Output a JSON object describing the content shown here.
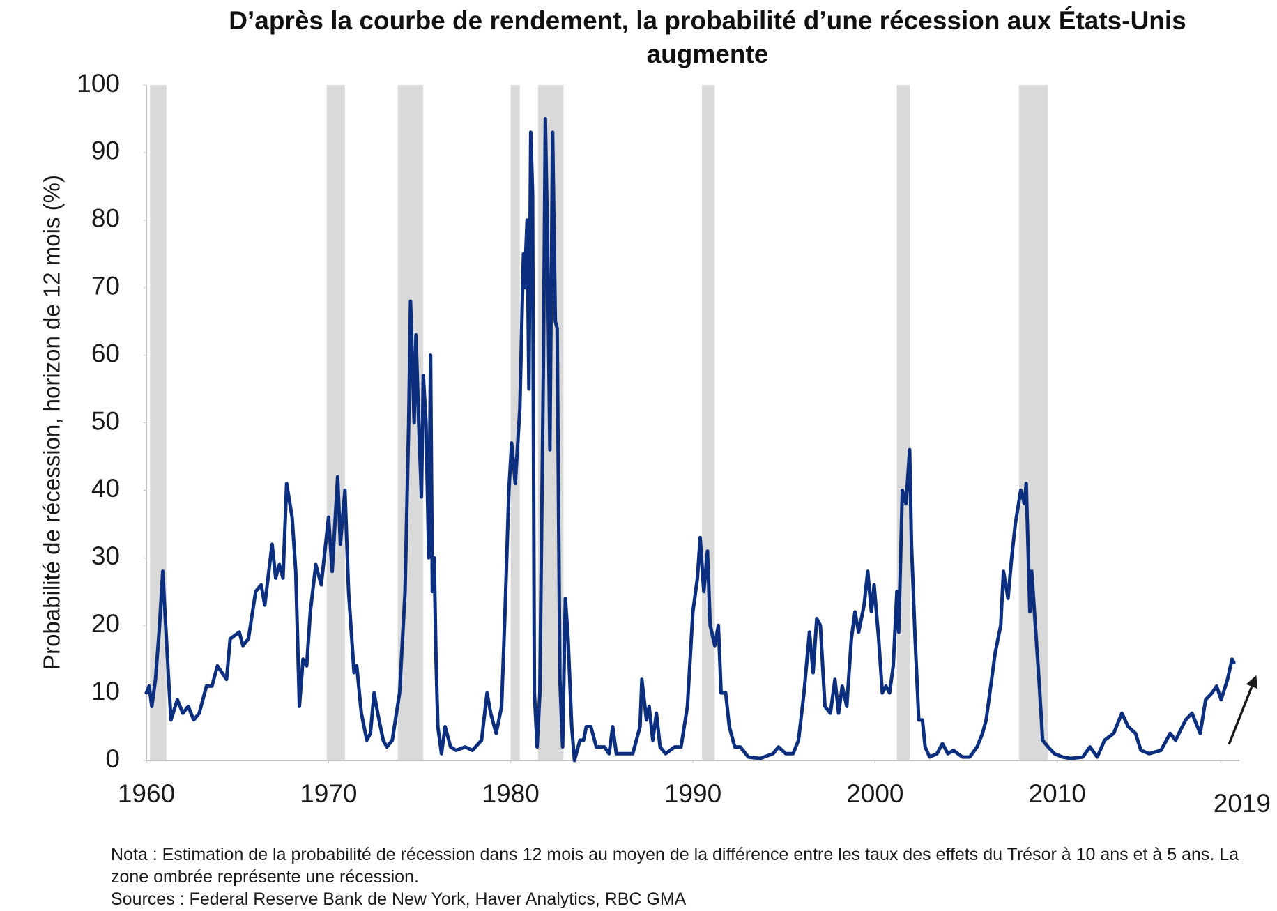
{
  "chart_data": {
    "type": "line",
    "title": "D’après la courbe de rendement, la probabilité d’une récession aux États-Unis augmente",
    "y_label": "Probabilité de récession, horizon de 12 mois (%)",
    "note": "Nota : Estimation de la probabilité de récession dans 12 mois au moyen de la différence entre les taux des effets du Trésor à 10 ans et à 5 ans. La zone ombrée représente une récession.",
    "sources": "Sources : Federal Reserve Bank de New York, Haver Analytics, RBC GMA",
    "color": "#0b2f7e",
    "shade_color": "#d9d9d9",
    "xlim": [
      1960,
      2020
    ],
    "xticks": [
      1960,
      1970,
      1980,
      1990,
      2000,
      2010,
      2019
    ],
    "ylim": [
      0,
      100
    ],
    "yticks": [
      0,
      10,
      20,
      30,
      40,
      50,
      60,
      70,
      80,
      90,
      100
    ],
    "recessions": [
      [
        1960.2,
        1961.1
      ],
      [
        1969.9,
        1970.9
      ],
      [
        1973.8,
        1975.2
      ],
      [
        1980.0,
        1980.5
      ],
      [
        1981.5,
        1982.9
      ],
      [
        1990.5,
        1991.2
      ],
      [
        2001.2,
        2001.9
      ],
      [
        2007.9,
        2009.5
      ]
    ],
    "x": [
      1960.0,
      1960.15,
      1960.3,
      1960.5,
      1960.7,
      1960.9,
      1961.2,
      1961.35,
      1961.7,
      1962.0,
      1962.3,
      1962.6,
      1962.9,
      1963.3,
      1963.6,
      1963.9,
      1964.4,
      1964.6,
      1965.1,
      1965.3,
      1965.6,
      1966.0,
      1966.3,
      1966.5,
      1966.9,
      1967.1,
      1967.3,
      1967.5,
      1967.7,
      1968.0,
      1968.2,
      1968.4,
      1968.6,
      1968.8,
      1969.0,
      1969.3,
      1969.6,
      1970.0,
      1970.2,
      1970.5,
      1970.65,
      1970.9,
      1971.1,
      1971.4,
      1971.55,
      1971.8,
      1972.1,
      1972.3,
      1972.5,
      1972.7,
      1973.0,
      1973.2,
      1973.5,
      1973.9,
      1974.2,
      1974.4,
      1974.5,
      1974.7,
      1974.8,
      1974.95,
      1975.1,
      1975.2,
      1975.35,
      1975.5,
      1975.6,
      1975.7,
      1975.8,
      1975.9,
      1976.0,
      1976.2,
      1976.4,
      1976.7,
      1977.0,
      1977.5,
      1977.9,
      1978.4,
      1978.7,
      1978.9,
      1979.2,
      1979.5,
      1979.7,
      1979.9,
      1980.05,
      1980.25,
      1980.5,
      1980.7,
      1980.75,
      1980.9,
      1981.0,
      1981.1,
      1981.2,
      1981.3,
      1981.45,
      1981.6,
      1981.8,
      1981.9,
      1982.0,
      1982.15,
      1982.3,
      1982.45,
      1982.55,
      1982.7,
      1982.85,
      1983.0,
      1983.15,
      1983.35,
      1983.5,
      1983.8,
      1984.0,
      1984.15,
      1984.4,
      1984.7,
      1985.15,
      1985.4,
      1985.6,
      1985.8,
      1986.3,
      1986.7,
      1987.1,
      1987.2,
      1987.45,
      1987.6,
      1987.8,
      1988.0,
      1988.2,
      1988.5,
      1989.0,
      1989.35,
      1989.7,
      1990.0,
      1990.25,
      1990.4,
      1990.6,
      1990.8,
      1990.95,
      1991.2,
      1991.4,
      1991.55,
      1991.8,
      1992.0,
      1992.3,
      1992.6,
      1993.05,
      1993.7,
      1994.4,
      1994.7,
      1995.1,
      1995.5,
      1995.8,
      1996.1,
      1996.4,
      1996.6,
      1996.8,
      1997.0,
      1997.25,
      1997.55,
      1997.8,
      1998.0,
      1998.2,
      1998.45,
      1998.7,
      1998.9,
      1999.1,
      1999.4,
      1999.6,
      1999.8,
      1999.95,
      2000.2,
      2000.4,
      2000.6,
      2000.8,
      2001.0,
      2001.2,
      2001.3,
      2001.5,
      2001.7,
      2001.9,
      2002.0,
      2002.2,
      2002.4,
      2002.6,
      2002.75,
      2003.0,
      2003.4,
      2003.7,
      2004.0,
      2004.3,
      2004.8,
      2005.2,
      2005.6,
      2005.9,
      2006.1,
      2006.4,
      2006.6,
      2006.9,
      2007.05,
      2007.3,
      2007.5,
      2007.7,
      2008.0,
      2008.2,
      2008.3,
      2008.5,
      2008.6,
      2008.8,
      2009.0,
      2009.2,
      2009.5,
      2009.85,
      2010.3,
      2010.75,
      2011.4,
      2011.8,
      2012.2,
      2012.6,
      2013.1,
      2013.55,
      2013.9,
      2014.3,
      2014.6,
      2015.05,
      2015.7,
      2016.2,
      2016.5,
      2017.05,
      2017.4,
      2017.85,
      2018.15,
      2018.5,
      2018.75,
      2019.0,
      2019.35,
      2019.6,
      2019.7
    ],
    "values": [
      10,
      11,
      8,
      12,
      19,
      28,
      13,
      6,
      9,
      7,
      8,
      6,
      7,
      11,
      11,
      14,
      12,
      18,
      19,
      17,
      18,
      25,
      26,
      23,
      32,
      27,
      29,
      27,
      41,
      36,
      28,
      8,
      15,
      14,
      22,
      29,
      26,
      36,
      28,
      42,
      32,
      40,
      25,
      13,
      14,
      7,
      3,
      4,
      10,
      7,
      3,
      2,
      3,
      10,
      25,
      50,
      68,
      50,
      63,
      50,
      39,
      57,
      50,
      30,
      60,
      25,
      30,
      15,
      5,
      1,
      5,
      2,
      1.5,
      2,
      1.5,
      3,
      10,
      7,
      4,
      8,
      23,
      40,
      47,
      41,
      52,
      75,
      70,
      80,
      55,
      93,
      84,
      10,
      2,
      10,
      60,
      95,
      80,
      46,
      93,
      65,
      64,
      12,
      2,
      24,
      18,
      5,
      0,
      3,
      3,
      5,
      5,
      2,
      2,
      1,
      5,
      1,
      1,
      1,
      5,
      12,
      6,
      8,
      3,
      7,
      2,
      1,
      2,
      2,
      8,
      22,
      27,
      33,
      25,
      31,
      20,
      17,
      20,
      10,
      10,
      5,
      2,
      2,
      0.5,
      0.3,
      1,
      2,
      1,
      1,
      3,
      10,
      19,
      13,
      21,
      20,
      8,
      7,
      12,
      7,
      11,
      8,
      18,
      22,
      19,
      23,
      28,
      22,
      26,
      18,
      10,
      11,
      10,
      14,
      25,
      19,
      40,
      38,
      46,
      32,
      18,
      6,
      6,
      2,
      0.5,
      1,
      2.5,
      1,
      1.5,
      0.5,
      0.5,
      2,
      4,
      6,
      12,
      16,
      20,
      28,
      24,
      30,
      35,
      40,
      38,
      41,
      22,
      28,
      20,
      12,
      3,
      2,
      1,
      0.5,
      0.3,
      0.5,
      2,
      0.5,
      3,
      4,
      7,
      5,
      4,
      1.5,
      1,
      1.5,
      4,
      3,
      6,
      7,
      4,
      9,
      10,
      11,
      9,
      12,
      15,
      14.5
    ]
  }
}
